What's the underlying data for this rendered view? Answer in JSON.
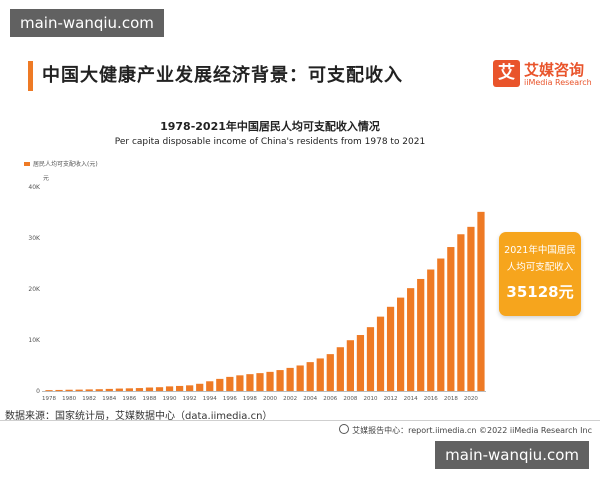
{
  "watermark": {
    "text": "main-wanqiu.com"
  },
  "header": {
    "title": "中国大健康产业发展经济背景：可支配收入",
    "brand_logo_char": "艾",
    "brand_name": "艾媒咨询",
    "brand_en": "iiMedia Research"
  },
  "chart_data": {
    "type": "bar",
    "title": "1978-2021年中国居民人均可支配收入情况",
    "subtitle": "Per capita disposable income of China's residents from 1978 to 2021",
    "legend_label": "居民人均可支配收入(元)",
    "legend_position": "top-left",
    "yunit": "元",
    "ylim": [
      0,
      40000
    ],
    "yticks": [
      0,
      10000,
      20000,
      30000,
      40000
    ],
    "ytick_labels": [
      "0",
      "10K",
      "20K",
      "30K",
      "40K"
    ],
    "grid": false,
    "bar_color": "#ee7a25",
    "categories": [
      "1978",
      "1979",
      "1980",
      "1981",
      "1982",
      "1983",
      "1984",
      "1985",
      "1986",
      "1987",
      "1988",
      "1989",
      "1990",
      "1991",
      "1992",
      "1993",
      "1994",
      "1995",
      "1996",
      "1997",
      "1998",
      "1999",
      "2000",
      "2001",
      "2002",
      "2003",
      "2004",
      "2005",
      "2006",
      "2007",
      "2008",
      "2009",
      "2010",
      "2011",
      "2012",
      "2013",
      "2014",
      "2015",
      "2016",
      "2017",
      "2018",
      "2019",
      "2020",
      "2021"
    ],
    "xtick_labels": [
      "1978",
      "1980",
      "1982",
      "1984",
      "1986",
      "1988",
      "1990",
      "1992",
      "1994",
      "1996",
      "1998",
      "2000",
      "2002",
      "2004",
      "2006",
      "2008",
      "2010",
      "2012",
      "2014",
      "2016",
      "2018",
      "2020"
    ],
    "values": [
      171,
      206,
      247,
      271,
      312,
      350,
      411,
      479,
      522,
      573,
      684,
      743,
      907,
      993,
      1109,
      1416,
      1906,
      2376,
      2769,
      3073,
      3301,
      3504,
      3752,
      4102,
      4532,
      5007,
      5661,
      6385,
      7229,
      8584,
      9957,
      10977,
      12520,
      14582,
      16510,
      18311,
      20167,
      21966,
      23821,
      25974,
      28228,
      30733,
      32189,
      35128
    ]
  },
  "callout": {
    "line1": "2021年中国居民",
    "line2": "人均可支配收入",
    "value": "35128元"
  },
  "footer": {
    "source": "数据来源：国家统计局，艾媒数据中心（data.iimedia.cn）",
    "report": "艾媒报告中心：report.iimedia.cn  ©2022  iiMedia Research  Inc"
  }
}
